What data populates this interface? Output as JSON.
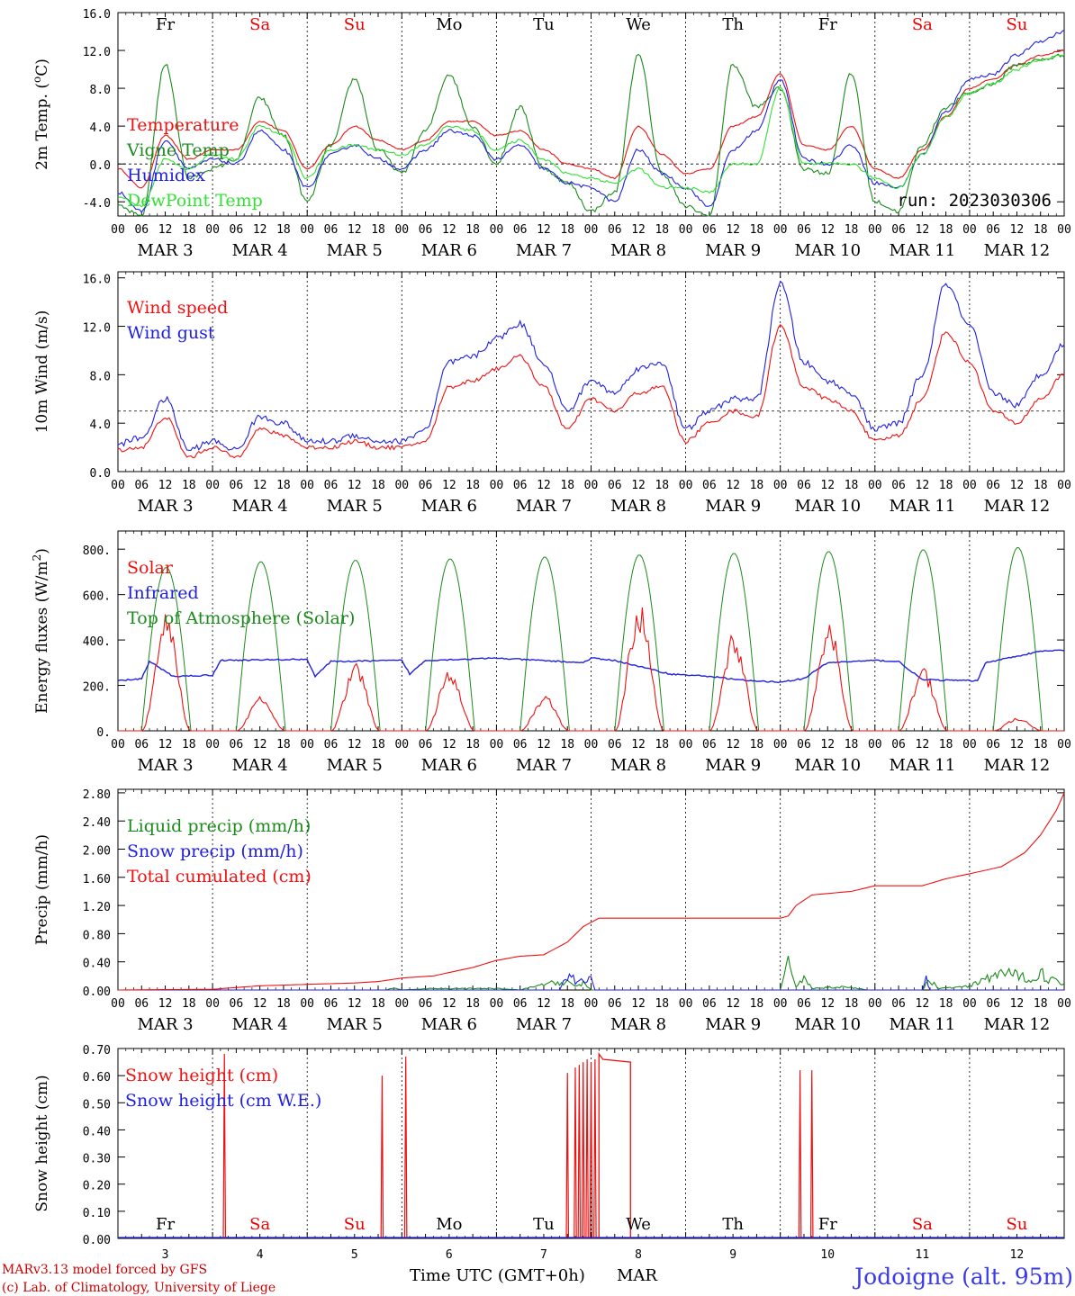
{
  "x_hour_labels": [
    "00",
    "06",
    "12",
    "18"
  ],
  "x_end_label": "00",
  "date_labels": [
    "MAR  3",
    "MAR  4",
    "MAR  5",
    "MAR  6",
    "MAR  7",
    "MAR  8",
    "MAR  9",
    "MAR 10",
    "MAR 11",
    "MAR 12"
  ],
  "weekday_labels": [
    "Fr",
    "Sa",
    "Su",
    "Mo",
    "Tu",
    "We",
    "Th",
    "Fr",
    "Sa",
    "Su"
  ],
  "weekday_colors": [
    "#000000",
    "#ee0000",
    "#ee0000",
    "#000000",
    "#000000",
    "#000000",
    "#000000",
    "#000000",
    "#ee0000",
    "#ee0000"
  ],
  "bottom_day_numbers": [
    "3",
    "4",
    "5",
    "6",
    "7",
    "8",
    "9",
    "10",
    "11",
    "12"
  ],
  "run_label": "run: 2023030306",
  "footer": {
    "model_line": "MARv3.13 model forced by GFS",
    "credit_line": "(c) Lab. of Climatology, University of Liege",
    "time_label": "Time UTC (GMT+0h)",
    "month_label": "MAR",
    "station": "Jodoigne (alt. 95m)"
  },
  "colors": {
    "red": "#ee1111",
    "green": "#1c8a1c",
    "blue": "#2020e0",
    "lightgreen": "#33e033"
  },
  "chart_data": [
    {
      "type": "line",
      "ylabel": "2m Temp. (°C)",
      "ylabel_parts": [
        "2m Temp. (",
        "o",
        "C)"
      ],
      "ylim": [
        -5.5,
        16.0
      ],
      "yticks": [
        "-4.0",
        "0.0",
        "4.0",
        "8.0",
        "12.0",
        "16.0"
      ],
      "ytick_values": [
        -4,
        0,
        4,
        8,
        12,
        16
      ],
      "reference_line": 0,
      "x_hours": [
        0,
        6,
        12,
        18,
        24,
        30,
        36,
        42,
        48,
        54,
        60,
        66,
        72,
        78,
        84,
        90,
        96,
        102,
        108,
        114,
        120,
        126,
        132,
        138,
        144,
        150,
        156,
        162,
        168,
        174,
        180,
        186,
        192,
        198,
        204,
        210,
        216,
        222,
        228,
        234,
        240
      ],
      "series": [
        {
          "name": "Temperature",
          "color": "red",
          "values": [
            -0.5,
            -2.5,
            3.0,
            0.5,
            1.5,
            1.5,
            4.5,
            3.5,
            -0.5,
            2.0,
            4.0,
            2.5,
            1.5,
            2.5,
            4.5,
            4.5,
            3.0,
            3.5,
            1.5,
            0.0,
            -0.5,
            -1.5,
            4.0,
            1.0,
            -1.0,
            -0.5,
            4.0,
            5.0,
            9.5,
            2.0,
            1.5,
            4.0,
            -0.5,
            -1.5,
            1.5,
            5.0,
            8.0,
            9.0,
            10.5,
            11.5,
            12.0
          ]
        },
        {
          "name": "Vigne Temp",
          "color": "green",
          "values": [
            -4.5,
            -5.5,
            10.5,
            -1.5,
            -0.5,
            0.5,
            7.0,
            3.0,
            -4.0,
            2.0,
            9.0,
            1.5,
            -1.0,
            3.5,
            9.5,
            4.0,
            0.0,
            6.0,
            -0.5,
            -2.0,
            -5.0,
            -3.0,
            11.5,
            -1.0,
            -4.5,
            -5.5,
            10.5,
            6.0,
            8.0,
            -0.5,
            -1.0,
            9.5,
            -4.0,
            -5.0,
            2.0,
            6.0,
            7.5,
            8.5,
            10.5,
            11.0,
            11.5
          ]
        },
        {
          "name": "Humidex",
          "color": "blue",
          "values": [
            -3.0,
            -5.0,
            2.5,
            -0.5,
            0.5,
            0.0,
            3.5,
            1.5,
            -2.5,
            1.0,
            2.0,
            0.5,
            -0.5,
            1.5,
            3.5,
            3.0,
            0.5,
            2.0,
            -0.5,
            -2.0,
            -2.5,
            -4.0,
            1.5,
            -1.0,
            -2.5,
            -4.5,
            1.5,
            3.5,
            9.0,
            0.5,
            0.0,
            2.0,
            -2.0,
            -2.5,
            1.0,
            5.5,
            9.0,
            9.5,
            11.5,
            13.0,
            14.0
          ]
        },
        {
          "name": "DewPoint Temp",
          "color": "lightgreen",
          "values": [
            -3.5,
            -4.5,
            0.5,
            -0.5,
            1.0,
            0.5,
            4.0,
            3.0,
            -1.5,
            1.5,
            2.0,
            1.5,
            1.0,
            2.0,
            4.0,
            3.5,
            1.5,
            2.5,
            0.5,
            -1.0,
            -1.5,
            -2.0,
            -0.5,
            -2.5,
            -2.5,
            -3.0,
            0.0,
            0.0,
            8.0,
            0.0,
            0.0,
            0.0,
            -1.5,
            -2.5,
            1.0,
            5.0,
            7.5,
            8.5,
            10.0,
            11.0,
            11.5
          ]
        }
      ]
    },
    {
      "type": "line",
      "ylabel": "10m Wind (m/s)",
      "ylim": [
        0,
        16.5
      ],
      "yticks": [
        "0.0",
        "4.0",
        "8.0",
        "12.0",
        "16.0"
      ],
      "ytick_values": [
        0,
        4,
        8,
        12,
        16
      ],
      "reference_line": 5,
      "x_hours": [
        0,
        6,
        12,
        18,
        24,
        30,
        36,
        42,
        48,
        54,
        60,
        66,
        72,
        78,
        84,
        90,
        96,
        102,
        108,
        114,
        120,
        126,
        132,
        138,
        144,
        150,
        156,
        162,
        168,
        174,
        180,
        186,
        192,
        198,
        204,
        210,
        216,
        222,
        228,
        234,
        240
      ],
      "series": [
        {
          "name": "Wind speed",
          "color": "red",
          "values": [
            1.8,
            2.0,
            4.5,
            1.2,
            2.0,
            1.2,
            3.5,
            3.0,
            2.0,
            2.0,
            2.5,
            2.0,
            2.0,
            2.5,
            7.0,
            7.5,
            8.5,
            9.5,
            7.0,
            3.5,
            6.0,
            5.0,
            6.5,
            7.0,
            2.5,
            4.0,
            5.0,
            4.5,
            12.0,
            7.0,
            6.0,
            5.0,
            2.5,
            3.0,
            6.0,
            11.5,
            9.0,
            5.0,
            4.0,
            6.0,
            8.0
          ]
        },
        {
          "name": "Wind gust",
          "color": "blue",
          "values": [
            2.3,
            2.8,
            6.0,
            1.8,
            2.5,
            1.8,
            4.5,
            4.0,
            2.5,
            2.5,
            3.0,
            2.5,
            2.5,
            3.5,
            9.0,
            9.5,
            11.0,
            12.2,
            9.0,
            5.0,
            7.5,
            6.5,
            8.5,
            9.0,
            3.5,
            5.0,
            6.0,
            6.0,
            15.5,
            9.0,
            7.5,
            6.5,
            3.5,
            4.0,
            8.0,
            15.5,
            12.0,
            6.5,
            5.5,
            8.0,
            10.5
          ]
        }
      ]
    },
    {
      "type": "area",
      "ylabel": "Energy fluxes (W/m²)",
      "ylabel_parts": [
        "Energy fluxes (W/m",
        "2",
        ")"
      ],
      "ylim": [
        0,
        880
      ],
      "yticks": [
        "0.",
        "200.",
        "400.",
        "600.",
        "800."
      ],
      "ytick_values": [
        0,
        200,
        400,
        600,
        800
      ],
      "daily_peaks": {
        "Solar": [
          520,
          150,
          300,
          275,
          160,
          570,
          440,
          490,
          280,
          60
        ],
        "Top of Atmosphere (Solar)": [
          720,
          745,
          752,
          758,
          766,
          775,
          782,
          790,
          798,
          808
        ]
      },
      "infrared_hourly": [
        [
          0,
          220
        ],
        [
          6,
          230
        ],
        [
          8,
          305
        ],
        [
          14,
          240
        ],
        [
          24,
          245
        ],
        [
          26,
          310
        ],
        [
          48,
          315
        ],
        [
          50,
          240
        ],
        [
          54,
          305
        ],
        [
          72,
          310
        ],
        [
          74,
          250
        ],
        [
          78,
          310
        ],
        [
          96,
          320
        ],
        [
          118,
          300
        ],
        [
          120,
          320
        ],
        [
          126,
          310
        ],
        [
          140,
          250
        ],
        [
          150,
          240
        ],
        [
          160,
          220
        ],
        [
          168,
          215
        ],
        [
          174,
          230
        ],
        [
          180,
          300
        ],
        [
          192,
          310
        ],
        [
          198,
          305
        ],
        [
          204,
          225
        ],
        [
          218,
          220
        ],
        [
          220,
          300
        ],
        [
          234,
          350
        ],
        [
          240,
          355
        ]
      ],
      "series": [
        {
          "name": "Solar",
          "color": "red"
        },
        {
          "name": "Infrared",
          "color": "blue"
        },
        {
          "name": "Top of Atmosphere (Solar)",
          "color": "green"
        }
      ]
    },
    {
      "type": "line",
      "ylabel": "Precip (mm/h)",
      "ylim": [
        0,
        2.85
      ],
      "yticks": [
        "0.00",
        "0.40",
        "0.80",
        "1.20",
        "1.60",
        "2.00",
        "2.40",
        "2.80"
      ],
      "ytick_values": [
        0,
        0.4,
        0.8,
        1.2,
        1.6,
        2.0,
        2.4,
        2.8
      ],
      "series": [
        {
          "name": "Liquid precip (mm/h)",
          "color": "green",
          "points": [
            [
              0,
              0
            ],
            [
              68,
              0
            ],
            [
              70,
              0.03
            ],
            [
              72,
              0
            ],
            [
              80,
              0.02
            ],
            [
              96,
              0.02
            ],
            [
              102,
              0
            ],
            [
              108,
              0.08
            ],
            [
              114,
              0.12
            ],
            [
              116,
              0.05
            ],
            [
              118,
              0.1
            ],
            [
              120,
              0
            ],
            [
              168,
              0
            ],
            [
              170,
              0.35
            ],
            [
              172,
              0.05
            ],
            [
              174,
              0.2
            ],
            [
              176,
              0.02
            ],
            [
              184,
              0.05
            ],
            [
              190,
              0
            ],
            [
              204,
              0
            ],
            [
              206,
              0.15
            ],
            [
              208,
              0.02
            ],
            [
              216,
              0.05
            ],
            [
              220,
              0.15
            ],
            [
              224,
              0.25
            ],
            [
              228,
              0.2
            ],
            [
              232,
              0.15
            ],
            [
              234,
              0.25
            ],
            [
              236,
              0.15
            ],
            [
              240,
              0.1
            ]
          ]
        },
        {
          "name": "Snow precip (mm/h)",
          "color": "blue",
          "points": [
            [
              0,
              0
            ],
            [
              112,
              0
            ],
            [
              114,
              0.2
            ],
            [
              115,
              0.3
            ],
            [
              116,
              0.1
            ],
            [
              120,
              0.18
            ],
            [
              121,
              0
            ],
            [
              204,
              0
            ],
            [
              205,
              0.18
            ],
            [
              206,
              0
            ],
            [
              240,
              0
            ]
          ]
        },
        {
          "name": "Total cumulated (cm)",
          "color": "red",
          "points": [
            [
              0,
              0
            ],
            [
              24,
              0.01
            ],
            [
              36,
              0.06
            ],
            [
              48,
              0.08
            ],
            [
              60,
              0.1
            ],
            [
              66,
              0.12
            ],
            [
              72,
              0.17
            ],
            [
              80,
              0.2
            ],
            [
              90,
              0.32
            ],
            [
              96,
              0.42
            ],
            [
              102,
              0.48
            ],
            [
              108,
              0.5
            ],
            [
              114,
              0.68
            ],
            [
              118,
              0.9
            ],
            [
              122,
              1.02
            ],
            [
              168,
              1.02
            ],
            [
              170,
              1.05
            ],
            [
              172,
              1.2
            ],
            [
              176,
              1.35
            ],
            [
              186,
              1.4
            ],
            [
              192,
              1.48
            ],
            [
              204,
              1.48
            ],
            [
              210,
              1.58
            ],
            [
              216,
              1.65
            ],
            [
              224,
              1.75
            ],
            [
              230,
              1.95
            ],
            [
              234,
              2.2
            ],
            [
              238,
              2.55
            ],
            [
              240,
              2.8
            ]
          ]
        }
      ]
    },
    {
      "type": "line",
      "ylabel": "Snow height (cm)",
      "ylim": [
        0,
        0.7
      ],
      "yticks": [
        "0.00",
        "0.10",
        "0.20",
        "0.30",
        "0.40",
        "0.50",
        "0.60",
        "0.70"
      ],
      "ytick_values": [
        0,
        0.1,
        0.2,
        0.3,
        0.4,
        0.5,
        0.6,
        0.7
      ],
      "series": [
        {
          "name": "Snow height (cm)",
          "color": "red",
          "spikes": [
            [
              27,
              0.68
            ],
            [
              67,
              0.6
            ],
            [
              73,
              0.67
            ],
            [
              114,
              0.61
            ],
            [
              116,
              0.63
            ],
            [
              117,
              0.64
            ],
            [
              118,
              0.65
            ],
            [
              119,
              0.66
            ],
            [
              120,
              0.65
            ],
            [
              121,
              0.66
            ],
            [
              173,
              0.62
            ],
            [
              176,
              0.62
            ]
          ],
          "plateau": {
            "start": 122,
            "end": 130,
            "values": [
              0.68,
              0.65
            ]
          }
        },
        {
          "name": "Snow height (cm W.E.)",
          "color": "blue"
        }
      ]
    }
  ]
}
